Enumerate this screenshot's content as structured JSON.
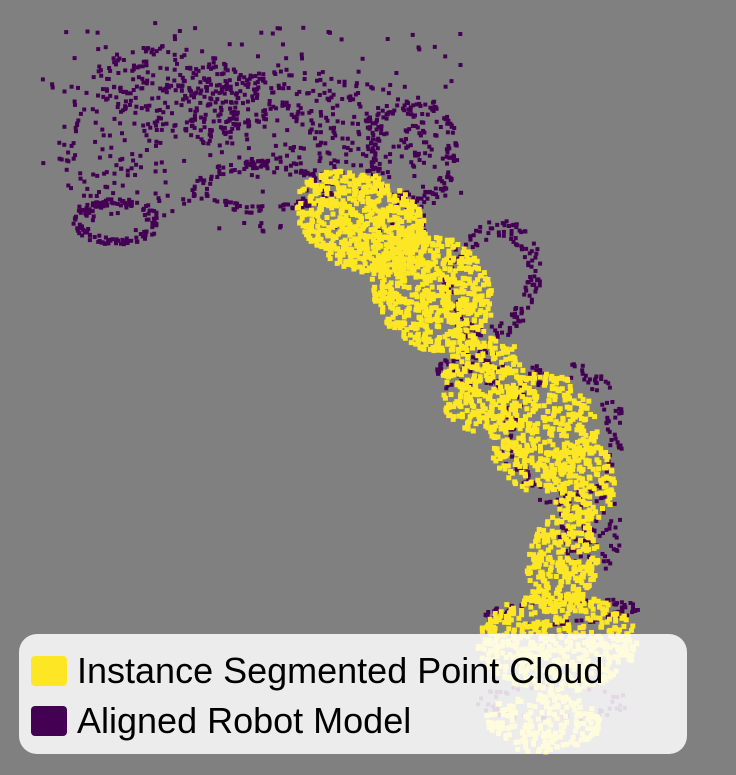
{
  "legend": {
    "items": [
      {
        "label": "Instance Segmented Point Cloud",
        "color": "#FDE725"
      },
      {
        "label": "Aligned Robot Model",
        "color": "#440154"
      }
    ]
  },
  "colors": {
    "background": "#808080",
    "segmented": "#FDE725",
    "model": "#440154"
  }
}
